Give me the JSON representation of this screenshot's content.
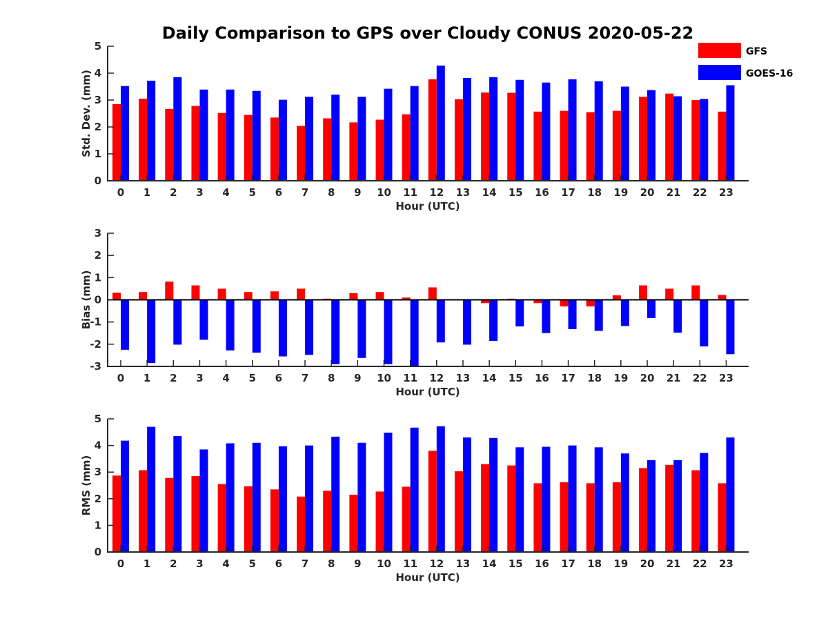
{
  "title": "Daily Comparison to GPS over Cloudy CONUS 2020-05-22",
  "colors": {
    "GFS": "#ff0000",
    "GOES-16": "#0000ff"
  },
  "legend": {
    "placement": "top-right",
    "entries": [
      "GFS",
      "GOES-16"
    ]
  },
  "chart_data": [
    {
      "type": "bar",
      "categories": [
        "0",
        "1",
        "2",
        "3",
        "4",
        "5",
        "6",
        "7",
        "8",
        "9",
        "10",
        "11",
        "12",
        "13",
        "14",
        "15",
        "16",
        "17",
        "18",
        "19",
        "20",
        "21",
        "22",
        "23"
      ],
      "xlabel": "Hour (UTC)",
      "ylabel": "Std. Dev. (mm)",
      "ylim": [
        0,
        5
      ],
      "yticks": [
        0,
        1,
        2,
        3,
        4,
        5
      ],
      "grid": false,
      "series": [
        {
          "name": "GFS",
          "values": [
            2.85,
            3.05,
            2.67,
            2.78,
            2.52,
            2.45,
            2.35,
            2.04,
            2.32,
            2.17,
            2.27,
            2.47,
            3.77,
            3.03,
            3.28,
            3.27,
            2.57,
            2.6,
            2.55,
            2.6,
            3.12,
            3.24,
            3.0,
            2.57
          ]
        },
        {
          "name": "GOES-16",
          "values": [
            3.52,
            3.72,
            3.85,
            3.39,
            3.39,
            3.34,
            3.01,
            3.12,
            3.2,
            3.12,
            3.42,
            3.52,
            4.28,
            3.82,
            3.85,
            3.75,
            3.65,
            3.77,
            3.7,
            3.5,
            3.37,
            3.14,
            3.04,
            3.55
          ]
        }
      ]
    },
    {
      "type": "bar",
      "categories": [
        "0",
        "1",
        "2",
        "3",
        "4",
        "5",
        "6",
        "7",
        "8",
        "9",
        "10",
        "11",
        "12",
        "13",
        "14",
        "15",
        "16",
        "17",
        "18",
        "19",
        "20",
        "21",
        "22",
        "23"
      ],
      "xlabel": "Hour (UTC)",
      "ylabel": "Bias (mm)",
      "ylim": [
        -3,
        3
      ],
      "yticks": [
        -3,
        -2,
        -1,
        0,
        1,
        2,
        3
      ],
      "grid": false,
      "series": [
        {
          "name": "GFS",
          "values": [
            0.32,
            0.35,
            0.82,
            0.65,
            0.5,
            0.35,
            0.38,
            0.5,
            0.05,
            0.3,
            0.35,
            0.1,
            0.56,
            0.0,
            -0.15,
            0.05,
            -0.15,
            -0.3,
            -0.3,
            0.2,
            0.65,
            0.5,
            0.65,
            0.22
          ]
        },
        {
          "name": "GOES-16",
          "values": [
            -2.25,
            -2.85,
            -2.02,
            -1.8,
            -2.28,
            -2.38,
            -2.55,
            -2.48,
            -2.9,
            -2.62,
            -2.9,
            -2.98,
            -1.92,
            -2.02,
            -1.85,
            -1.2,
            -1.5,
            -1.32,
            -1.4,
            -1.18,
            -0.82,
            -1.48,
            -2.1,
            -2.45
          ]
        }
      ]
    },
    {
      "type": "bar",
      "categories": [
        "0",
        "1",
        "2",
        "3",
        "4",
        "5",
        "6",
        "7",
        "8",
        "9",
        "10",
        "11",
        "12",
        "13",
        "14",
        "15",
        "16",
        "17",
        "18",
        "19",
        "20",
        "21",
        "22",
        "23"
      ],
      "xlabel": "Hour (UTC)",
      "ylabel": "RMS (mm)",
      "ylim": [
        0,
        5
      ],
      "yticks": [
        0,
        1,
        2,
        3,
        4,
        5
      ],
      "grid": false,
      "series": [
        {
          "name": "GFS",
          "values": [
            2.87,
            3.07,
            2.78,
            2.85,
            2.55,
            2.47,
            2.35,
            2.08,
            2.3,
            2.15,
            2.27,
            2.45,
            3.8,
            3.03,
            3.3,
            3.25,
            2.58,
            2.62,
            2.58,
            2.62,
            3.15,
            3.27,
            3.07,
            2.58
          ]
        },
        {
          "name": "GOES-16",
          "values": [
            4.18,
            4.7,
            4.35,
            3.85,
            4.08,
            4.1,
            3.97,
            4.0,
            4.33,
            4.1,
            4.48,
            4.67,
            4.72,
            4.3,
            4.28,
            3.93,
            3.95,
            4.0,
            3.93,
            3.7,
            3.45,
            3.45,
            3.72,
            4.3
          ]
        }
      ]
    }
  ]
}
